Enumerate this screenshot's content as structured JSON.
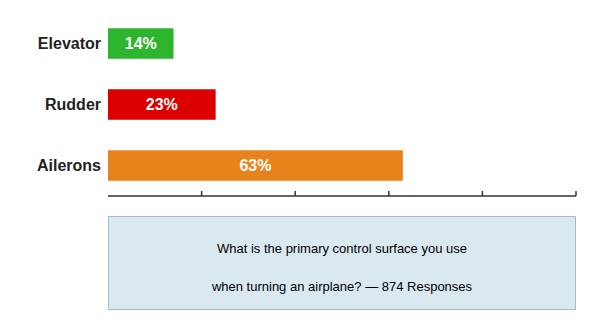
{
  "chart_data": {
    "type": "bar",
    "orientation": "horizontal",
    "categories": [
      "Ailerons",
      "Rudder",
      "Elevator"
    ],
    "values": [
      63,
      23,
      14
    ],
    "value_labels": [
      "63%",
      "23%",
      "14%"
    ],
    "colors": [
      "#E8821A",
      "#DD0000",
      "#2DB52D"
    ],
    "xlim": [
      0,
      100
    ],
    "xticks": [
      20,
      40,
      60,
      80,
      100
    ],
    "tick_labels": "y",
    "data_labels": true,
    "annotations": [
      "What is the primary control surface you use",
      "when turning an airplane?  — 874 Responses"
    ]
  }
}
